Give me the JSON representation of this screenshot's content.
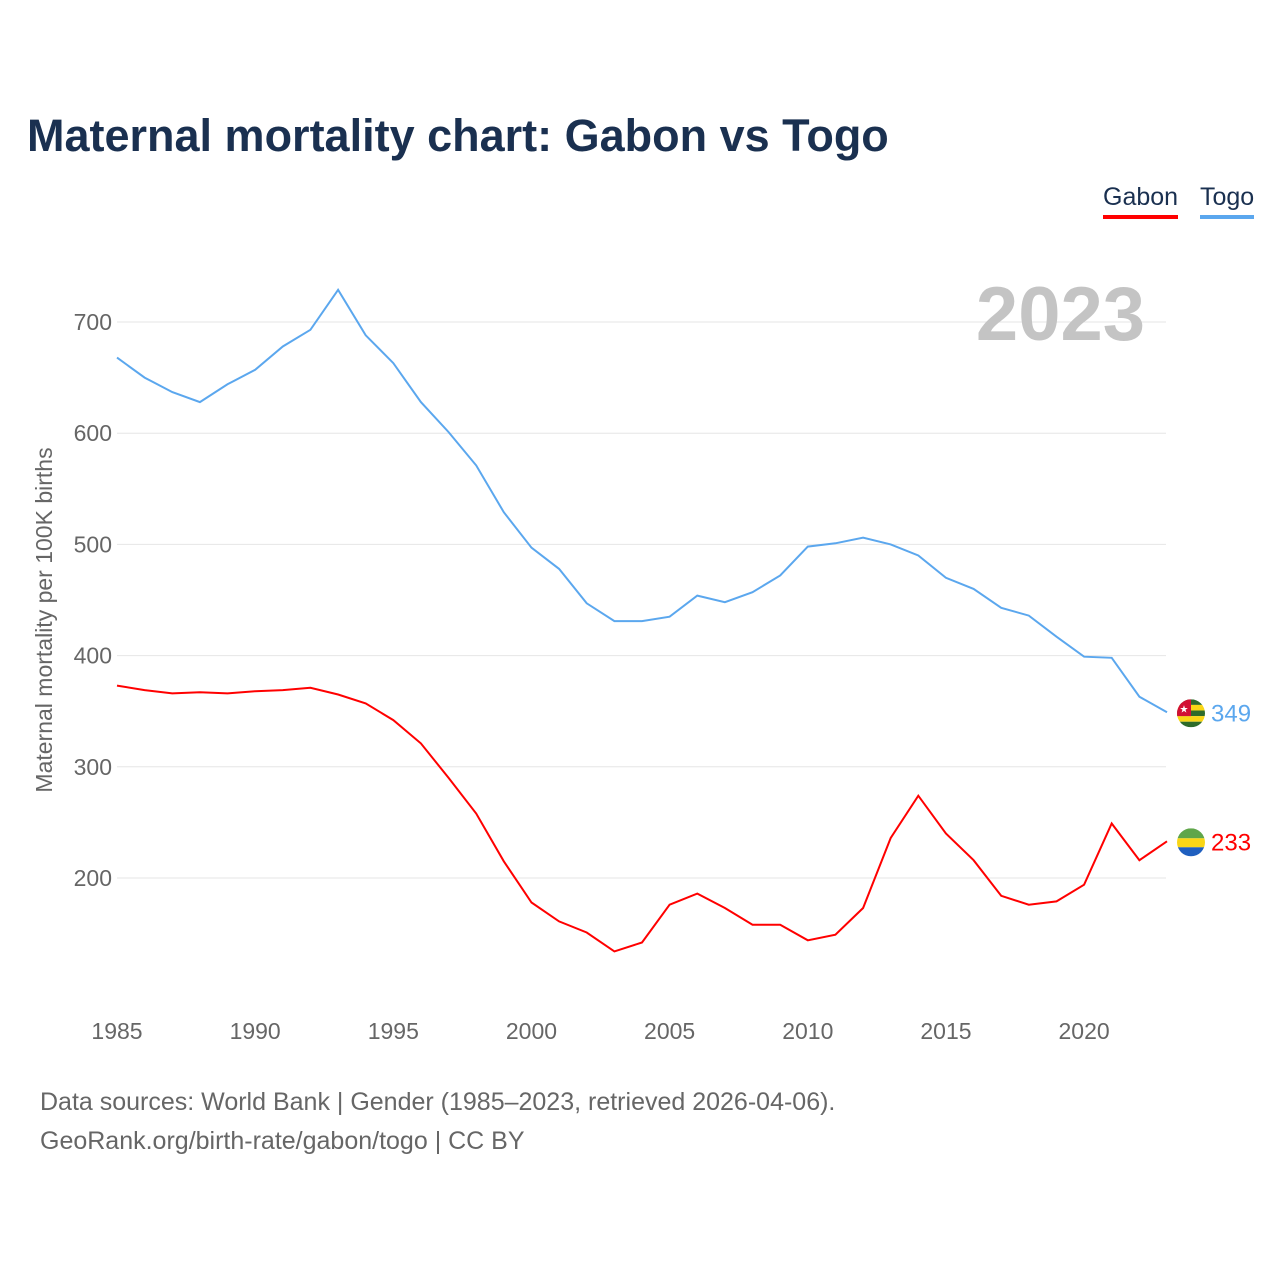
{
  "chart_data": {
    "type": "line",
    "title": "Maternal mortality chart: Gabon vs Togo",
    "xlabel": "",
    "ylabel": "Maternal mortality per 100K births",
    "year_label": "2023",
    "x": [
      1985,
      1986,
      1987,
      1988,
      1989,
      1990,
      1991,
      1992,
      1993,
      1994,
      1995,
      1996,
      1997,
      1998,
      1999,
      2000,
      2001,
      2002,
      2003,
      2004,
      2005,
      2006,
      2007,
      2008,
      2009,
      2010,
      2011,
      2012,
      2013,
      2014,
      2015,
      2016,
      2017,
      2018,
      2019,
      2020,
      2021,
      2022,
      2023
    ],
    "xticks": [
      1985,
      1990,
      1995,
      2000,
      2005,
      2010,
      2015,
      2020
    ],
    "yticks": [
      200,
      300,
      400,
      500,
      600,
      700
    ],
    "xlim": [
      1985,
      2023
    ],
    "ylim": [
      100,
      760
    ],
    "grid": true,
    "legend_placement": "top-right",
    "series": [
      {
        "name": "Gabon",
        "color": "#ff0000",
        "end_label": "233",
        "values": [
          373,
          369,
          366,
          367,
          366,
          368,
          369,
          371,
          365,
          357,
          342,
          321,
          290,
          258,
          215,
          178,
          161,
          151,
          134,
          142,
          176,
          186,
          173,
          158,
          158,
          144,
          149,
          173,
          236,
          274,
          240,
          216,
          184,
          176,
          179,
          194,
          249,
          216,
          233
        ]
      },
      {
        "name": "Togo",
        "color": "#5ba7ee",
        "end_label": "349",
        "values": [
          668,
          650,
          637,
          628,
          644,
          657,
          678,
          693,
          729,
          688,
          663,
          628,
          601,
          571,
          529,
          497,
          478,
          447,
          431,
          431,
          435,
          454,
          448,
          457,
          472,
          498,
          501,
          506,
          500,
          490,
          470,
          460,
          443,
          436,
          417,
          399,
          398,
          363,
          349
        ]
      }
    ]
  },
  "footer": {
    "line1": "Data sources: World Bank | Gender (1985–2023, retrieved 2026-04-06).",
    "line2": "GeoRank.org/birth-rate/gabon/togo | CC BY"
  }
}
